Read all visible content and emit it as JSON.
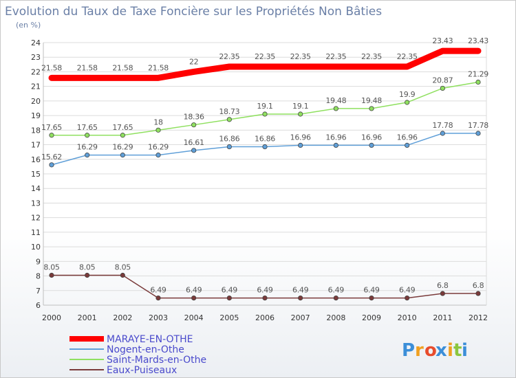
{
  "chart_data": {
    "type": "line",
    "title": "Evolution du Taux de Taxe Foncière sur les Propriétés Non Bâties",
    "subtitle": "(en %)",
    "x": [
      "2000",
      "2001",
      "2002",
      "2003",
      "2004",
      "2005",
      "2006",
      "2007",
      "2008",
      "2009",
      "2010",
      "2011",
      "2012"
    ],
    "ylim": [
      6,
      24
    ],
    "yticks": [
      6,
      7,
      8,
      9,
      10,
      11,
      12,
      13,
      14,
      15,
      16,
      17,
      18,
      19,
      20,
      21,
      22,
      23,
      24
    ],
    "grid": "horizontal",
    "legend_position": "bottom-left",
    "series": [
      {
        "name": "MARAYE-EN-OTHE",
        "color": "#ff0000",
        "values": [
          21.58,
          21.58,
          21.58,
          21.58,
          22,
          22.35,
          22.35,
          22.35,
          22.35,
          22.35,
          22.35,
          23.43,
          23.43
        ],
        "labels": [
          "21.58",
          "21.58",
          "21.58",
          "21.58",
          "22",
          "22.35",
          "22.35",
          "22.35",
          "22.35",
          "22.35",
          "22.35",
          "23.43",
          "23.43"
        ]
      },
      {
        "name": "Nogent-en-Othe",
        "color": "#5f9fd8",
        "values": [
          15.62,
          16.29,
          16.29,
          16.29,
          16.61,
          16.86,
          16.86,
          16.96,
          16.96,
          16.96,
          16.96,
          17.78,
          17.78
        ],
        "labels": [
          "15.62",
          "16.29",
          "16.29",
          "16.29",
          "16.61",
          "16.86",
          "16.86",
          "16.96",
          "16.96",
          "16.96",
          "16.96",
          "17.78",
          "17.78"
        ]
      },
      {
        "name": "Saint-Mards-en-Othe",
        "color": "#8fe05f",
        "values": [
          17.65,
          17.65,
          17.65,
          18,
          18.36,
          18.73,
          19.1,
          19.1,
          19.48,
          19.48,
          19.9,
          20.87,
          21.29
        ],
        "labels": [
          "17.65",
          "17.65",
          "17.65",
          "18",
          "18.36",
          "18.73",
          "19.1",
          "19.1",
          "19.48",
          "19.48",
          "19.9",
          "20.87",
          "21.29"
        ]
      },
      {
        "name": "Eaux-Puiseaux",
        "color": "#7a3a3a",
        "values": [
          8.05,
          8.05,
          8.05,
          6.49,
          6.49,
          6.49,
          6.49,
          6.49,
          6.49,
          6.49,
          6.49,
          6.8,
          6.8
        ],
        "labels": [
          "8.05",
          "8.05",
          "8.05",
          "6.49",
          "6.49",
          "6.49",
          "6.49",
          "6.49",
          "6.49",
          "6.49",
          "6.49",
          "6.8",
          "6.8"
        ]
      }
    ]
  },
  "brand": {
    "letters": [
      "P",
      "r",
      "o",
      "x",
      "i",
      "t",
      "i"
    ],
    "colors": [
      "#3b8ed8",
      "#f0a020",
      "#e84c2c",
      "#3b8ed8",
      "#f0a020",
      "#8cc63f",
      "#3b8ed8"
    ]
  }
}
